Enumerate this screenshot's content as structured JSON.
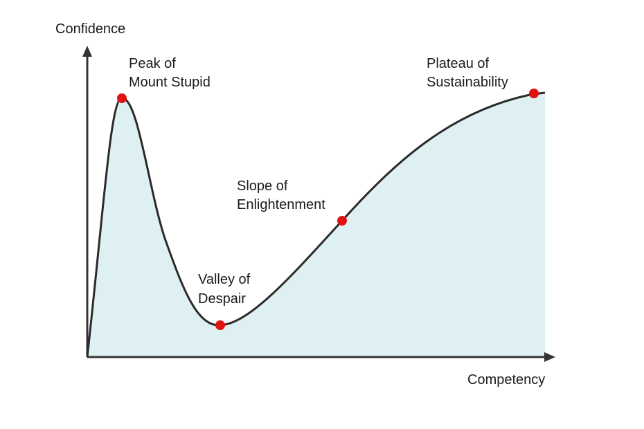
{
  "axes": {
    "y_title": "Confidence",
    "x_title": "Competency"
  },
  "colors": {
    "curve": "#2b2b2b",
    "fill": "#dff0f3",
    "axis": "#333333",
    "marker": "#e01212"
  },
  "stages": [
    {
      "line1": "Peak of",
      "line2": "Mount Stupid"
    },
    {
      "line1": "Valley of",
      "line2": "Despair"
    },
    {
      "line1": "Slope of",
      "line2": "Enlightenment"
    },
    {
      "line1": "Plateau of",
      "line2": "Sustainability"
    }
  ]
}
